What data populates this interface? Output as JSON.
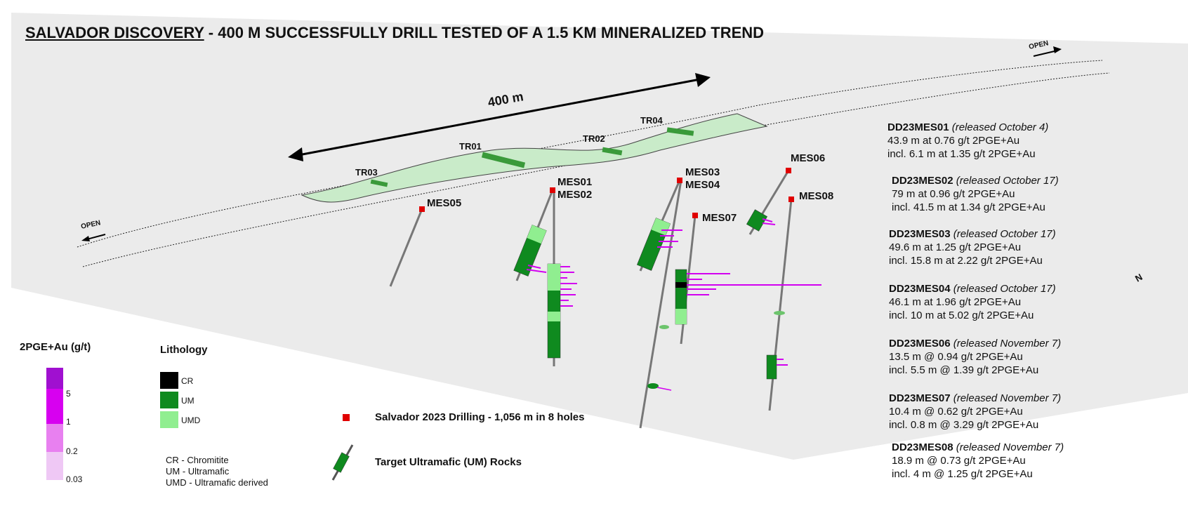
{
  "title": {
    "underlined": "SALVADOR DISCOVERY",
    "rest": " - 400 M SUCCESSFULLY DRILL TESTED OF A 1.5 KM MINERALIZED TREND"
  },
  "map": {
    "distance_label": "400 m",
    "open_left": "OPEN",
    "open_right": "OPEN",
    "north": "N",
    "trenches": [
      "TR03",
      "TR01",
      "TR02",
      "TR04"
    ],
    "holes": [
      "MES01",
      "MES02",
      "MES03",
      "MES04",
      "MES05",
      "MES06",
      "MES07",
      "MES08"
    ]
  },
  "holes_info": [
    {
      "id": "DD23MES01",
      "released": "(released October 4)",
      "line1": "43.9 m at 0.76 g/t 2PGE+Au",
      "line2": "incl. 6.1 m at 1.35 g/t 2PGE+Au"
    },
    {
      "id": "DD23MES02",
      "released": "(released October 17)",
      "line1": "79 m at 0.96 g/t 2PGE+Au",
      "line2": "incl. 41.5 m at 1.34 g/t 2PGE+Au"
    },
    {
      "id": "DD23MES03",
      "released": "(released October 17)",
      "line1": "49.6 m at 1.25 g/t 2PGE+Au",
      "line2": "incl. 15.8 m at 2.22 g/t 2PGE+Au"
    },
    {
      "id": "DD23MES04",
      "released": "(released October 17)",
      "line1": "46.1 m at 1.96 g/t 2PGE+Au",
      "line2": "incl. 10 m at 5.02 g/t 2PGE+Au"
    },
    {
      "id": "DD23MES06",
      "released": "(released November 7)",
      "line1": "13.5 m @ 0.94 g/t 2PGE+Au",
      "line2": "incl. 5.5 m @ 1.39 g/t 2PGE+Au"
    },
    {
      "id": "DD23MES07",
      "released": "(released November 7)",
      "line1": "10.4 m @ 0.62 g/t 2PGE+Au",
      "line2": "incl. 0.8 m @ 3.29 g/t 2PGE+Au"
    },
    {
      "id": "DD23MES08",
      "released": "(released November 7)",
      "line1": "18.9 m @ 0.73 g/t 2PGE+Au",
      "line2": "incl. 4 m @ 1.25 g/t 2PGE+Au"
    }
  ],
  "grade_legend": {
    "title": "2PGE+Au (g/t)",
    "ticks": [
      "5",
      "1",
      "0.2",
      "0.03"
    ],
    "colors": [
      "#a010d0",
      "#d700f0",
      "#e880f0",
      "#efc8f5"
    ]
  },
  "lithology_legend": {
    "title": "Lithology",
    "items": [
      {
        "code": "CR",
        "color": "#000000"
      },
      {
        "code": "UM",
        "color": "#0f8a1f"
      },
      {
        "code": "UMD",
        "color": "#90ee90"
      }
    ],
    "abbreviations": [
      "CR - Chromitite",
      "UM - Ultramafic",
      "UMD - Ultramafic derived"
    ]
  },
  "symbol_legend": {
    "drilling": "Salvador 2023 Drilling - 1,056 m in 8 holes",
    "target": "Target Ultramafic (UM) Rocks"
  }
}
